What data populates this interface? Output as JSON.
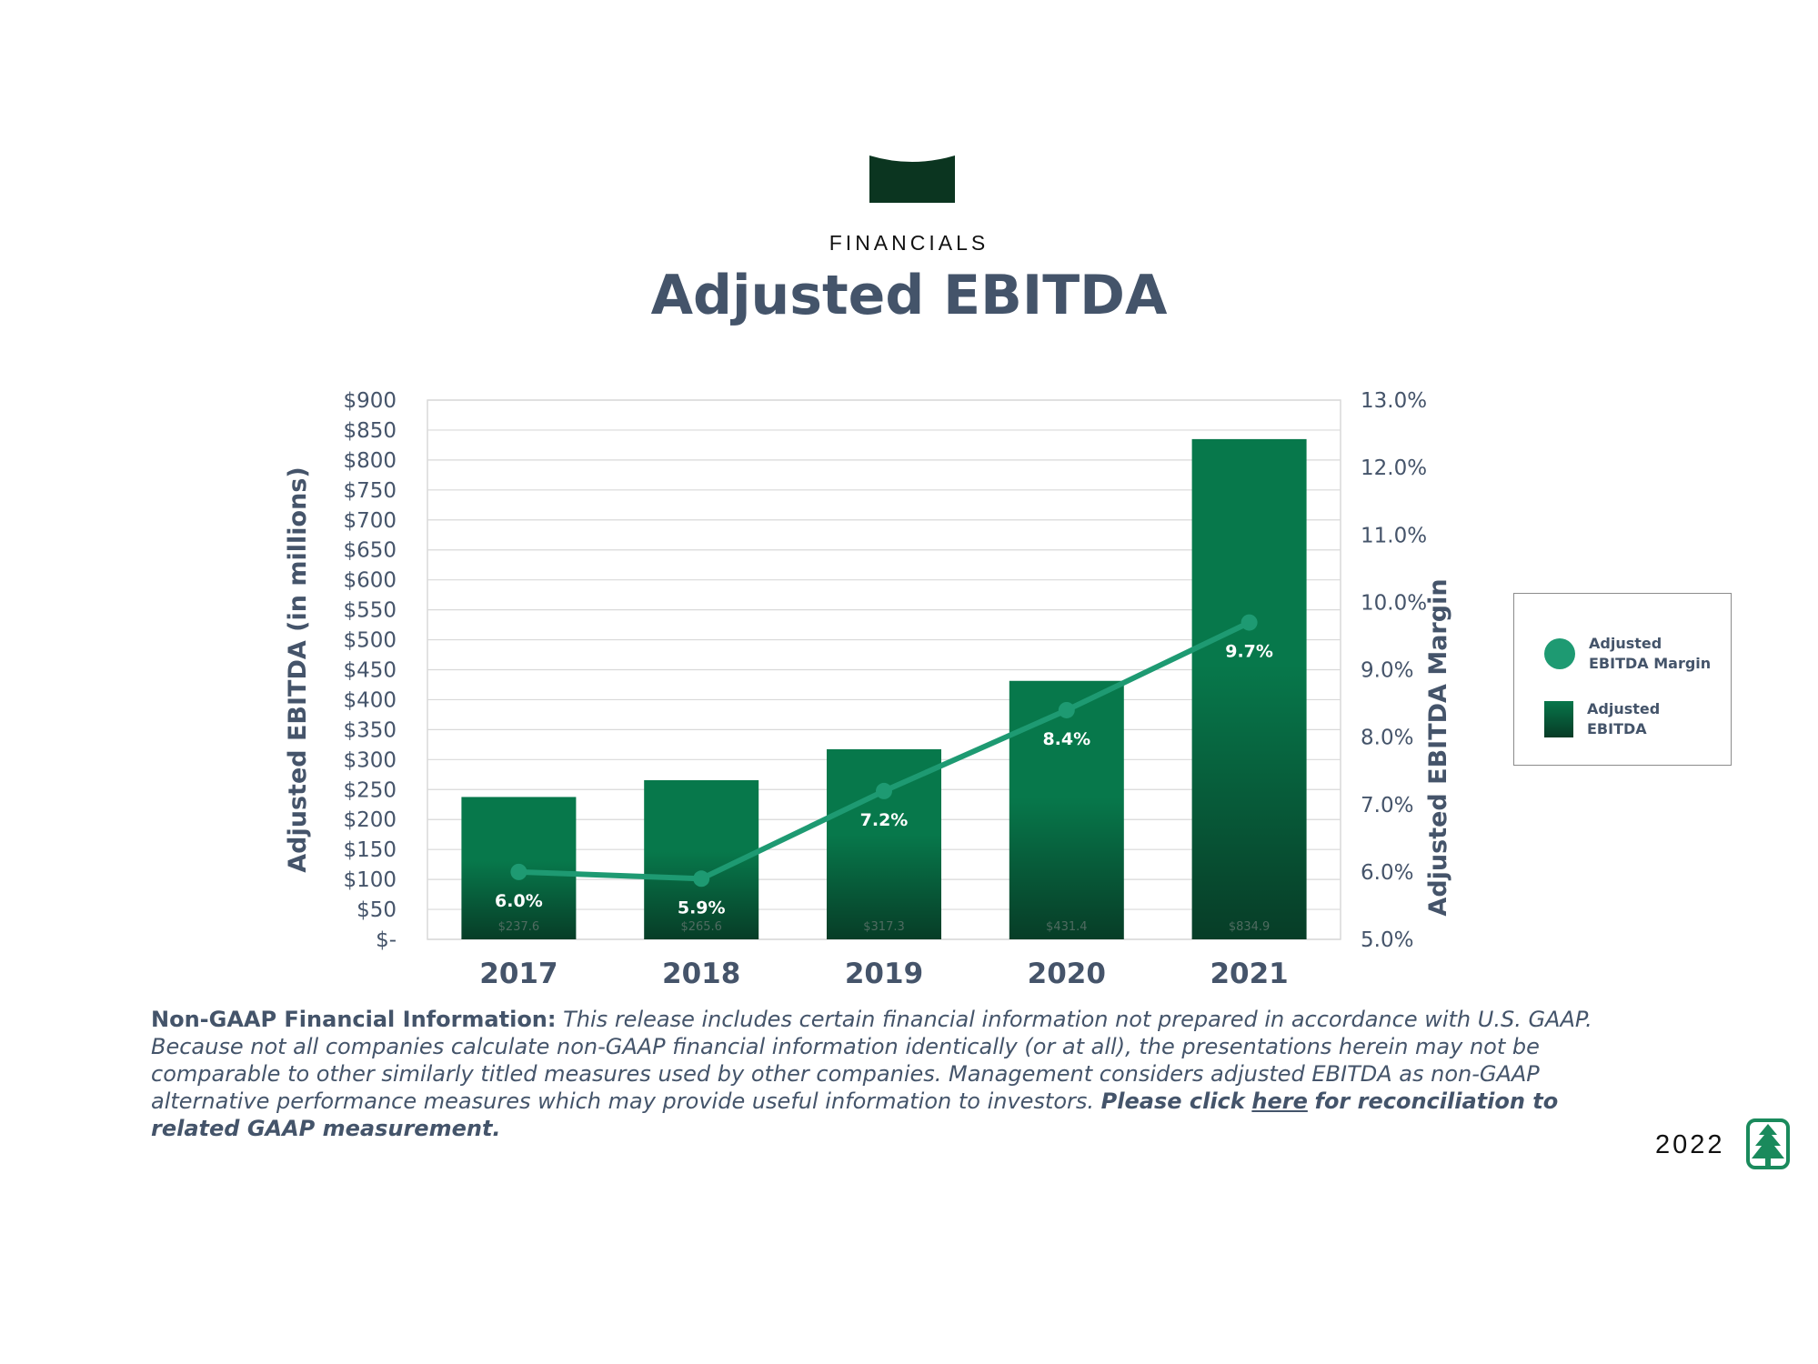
{
  "header": {
    "section_label": "FINANCIALS",
    "title": "Adjusted EBITDA"
  },
  "chart_data": {
    "type": "bar",
    "title": "Adjusted EBITDA",
    "categories": [
      "2017",
      "2018",
      "2019",
      "2020",
      "2021"
    ],
    "series": [
      {
        "name": "Adjusted EBITDA",
        "type": "bar",
        "axis": "left",
        "values": [
          237.6,
          265.6,
          317.3,
          431.4,
          834.9
        ],
        "value_labels": [
          "$237.6",
          "$265.6",
          "$317.3",
          "$431.4",
          "$834.9"
        ]
      },
      {
        "name": "Adjusted EBITDA Margin",
        "type": "line",
        "axis": "right",
        "values": [
          6.0,
          5.9,
          7.2,
          8.4,
          9.7
        ],
        "value_labels": [
          "6.0%",
          "5.9%",
          "7.2%",
          "8.4%",
          "9.7%"
        ]
      }
    ],
    "y_left": {
      "label": "Adjusted EBITDA  (in millions)",
      "min": 0,
      "max": 900,
      "step": 50,
      "tick_labels": [
        "$-",
        "$50",
        "$100",
        "$150",
        "$200",
        "$250",
        "$300",
        "$350",
        "$400",
        "$450",
        "$500",
        "$550",
        "$600",
        "$650",
        "$700",
        "$750",
        "$800",
        "$850",
        "$900"
      ]
    },
    "y_right": {
      "label": "Adjusted EBITDA Margin",
      "min": 5.0,
      "max": 13.0,
      "step": 1.0,
      "tick_labels": [
        "5.0%",
        "6.0%",
        "7.0%",
        "8.0%",
        "9.0%",
        "10.0%",
        "11.0%",
        "12.0%",
        "13.0%"
      ]
    },
    "grid": true,
    "legend_position": "right",
    "colors": {
      "bar_top": "#07784b",
      "bar_bottom": "#073d27",
      "line": "#1e9a72",
      "gridline": "#d9d9d9",
      "axis_text": "#45546a"
    }
  },
  "legend": {
    "items": [
      {
        "label": "Adjusted EBITDA Margin",
        "icon": "circle-marker"
      },
      {
        "label": "Adjusted EBITDA",
        "icon": "bar-swatch"
      }
    ]
  },
  "note": {
    "heading": "Non-GAAP Financial Information:",
    "body": "This release includes certain financial information not prepared in accordance with U.S. GAAP. Because not all companies calculate non-GAAP financial information identically (or at all), the presentations herein may not be comparable to other similarly titled measures used by other companies. Management considers adjusted EBITDA as non-GAAP alternative performance measures which may provide useful information to investors.",
    "cta_prefix": "Please click",
    "cta_link": "here",
    "cta_suffix": "for reconciliation to related GAAP measurement."
  },
  "footer": {
    "year": "2022",
    "logo_icon": "tree-icon",
    "accent_color": "#1a8a5c"
  }
}
